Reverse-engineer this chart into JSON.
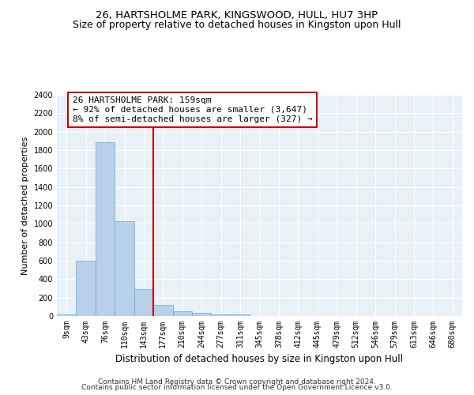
{
  "title1": "26, HARTSHOLME PARK, KINGSWOOD, HULL, HU7 3HP",
  "title2": "Size of property relative to detached houses in Kingston upon Hull",
  "xlabel": "Distribution of detached houses by size in Kingston upon Hull",
  "ylabel": "Number of detached properties",
  "categories": [
    "9sqm",
    "43sqm",
    "76sqm",
    "110sqm",
    "143sqm",
    "177sqm",
    "210sqm",
    "244sqm",
    "277sqm",
    "311sqm",
    "345sqm",
    "378sqm",
    "412sqm",
    "445sqm",
    "479sqm",
    "512sqm",
    "546sqm",
    "579sqm",
    "613sqm",
    "646sqm",
    "680sqm"
  ],
  "values": [
    20,
    600,
    1890,
    1030,
    290,
    120,
    50,
    35,
    20,
    20,
    0,
    0,
    0,
    0,
    0,
    0,
    0,
    0,
    0,
    0,
    0
  ],
  "bar_color": "#b8d0ea",
  "bar_edge_color": "#6aaad4",
  "vline_x": 4.5,
  "vline_color": "#cc0000",
  "annotation_text": "26 HARTSHOLME PARK: 159sqm\n← 92% of detached houses are smaller (3,647)\n8% of semi-detached houses are larger (327) →",
  "annotation_box_color": "#cc0000",
  "ylim": [
    0,
    2400
  ],
  "yticks": [
    0,
    200,
    400,
    600,
    800,
    1000,
    1200,
    1400,
    1600,
    1800,
    2000,
    2200,
    2400
  ],
  "footer1": "Contains HM Land Registry data © Crown copyright and database right 2024.",
  "footer2": "Contains public sector information licensed under the Open Government Licence v3.0.",
  "bg_color": "#e8f0f8",
  "grid_color": "#ffffff",
  "title1_fontsize": 9.5,
  "title2_fontsize": 9,
  "xlabel_fontsize": 8.5,
  "ylabel_fontsize": 8,
  "tick_fontsize": 7,
  "annotation_fontsize": 8,
  "footer_fontsize": 6.5
}
